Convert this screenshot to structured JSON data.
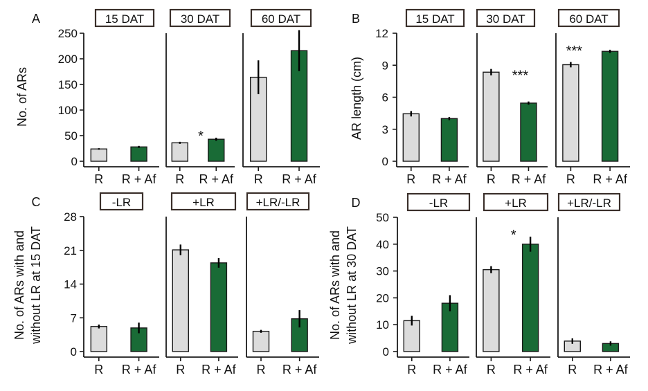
{
  "colors": {
    "control": "#dcdcdc",
    "treatment": "#196b36",
    "axis": "#1a1a1a",
    "box_border": "#3a2f2a"
  },
  "chart_data": [
    {
      "panel": "A",
      "type": "bar",
      "ylabel": "No. of ARs",
      "ylim": [
        0,
        250
      ],
      "yticks": [
        "0",
        "50",
        "100",
        "150",
        "200",
        "250"
      ],
      "groups": [
        {
          "label": "15 DAT",
          "categories": [
            "R",
            "R + Af"
          ],
          "values": [
            24,
            28
          ],
          "errors": [
            1.5,
            2
          ],
          "sig": ""
        },
        {
          "label": "30 DAT",
          "categories": [
            "R",
            "R + Af"
          ],
          "values": [
            36,
            43
          ],
          "errors": [
            2,
            3
          ],
          "sig": "*"
        },
        {
          "label": "60 DAT",
          "categories": [
            "R",
            "R + Af"
          ],
          "values": [
            164,
            216
          ],
          "errors": [
            33,
            40
          ],
          "sig": ""
        }
      ]
    },
    {
      "panel": "B",
      "type": "bar",
      "ylabel": "AR length (cm)",
      "ylim": [
        0,
        12
      ],
      "yticks": [
        "0",
        "3",
        "6",
        "9",
        "12"
      ],
      "groups": [
        {
          "label": "15 DAT",
          "categories": [
            "R",
            "R + Af"
          ],
          "values": [
            4.45,
            4.0
          ],
          "errors": [
            0.25,
            0.15
          ],
          "sig": ""
        },
        {
          "label": "30 DAT",
          "categories": [
            "R",
            "R + Af"
          ],
          "values": [
            8.35,
            5.45
          ],
          "errors": [
            0.3,
            0.15
          ],
          "sig": "***"
        },
        {
          "label": "60 DAT",
          "categories": [
            "R",
            "R + Af"
          ],
          "values": [
            9.05,
            10.3
          ],
          "errors": [
            0.25,
            0.15
          ],
          "sig": "***"
        }
      ]
    },
    {
      "panel": "C",
      "type": "bar",
      "ylabel": [
        "No. of ARs with and",
        "without LR at 15 DAT"
      ],
      "ylim": [
        0,
        28
      ],
      "yticks": [
        "0",
        "7",
        "14",
        "21",
        "28"
      ],
      "groups": [
        {
          "label": "-LR",
          "categories": [
            "R",
            "R + Af"
          ],
          "values": [
            5.2,
            4.9
          ],
          "errors": [
            0.4,
            1.1
          ],
          "sig": ""
        },
        {
          "label": "+LR",
          "categories": [
            "R",
            "R + Af"
          ],
          "values": [
            21.1,
            18.4
          ],
          "errors": [
            1.1,
            1.0
          ],
          "sig": ""
        },
        {
          "label": "+LR/-LR",
          "categories": [
            "R",
            "R + Af"
          ],
          "values": [
            4.2,
            6.8
          ],
          "errors": [
            0.3,
            1.8
          ],
          "sig": ""
        }
      ]
    },
    {
      "panel": "D",
      "type": "bar",
      "ylabel": [
        "No. of ARs with and",
        "without LR at 30 DAT"
      ],
      "ylim": [
        0,
        50
      ],
      "yticks": [
        "0",
        "10",
        "20",
        "30",
        "40",
        "50"
      ],
      "groups": [
        {
          "label": "-LR",
          "categories": [
            "R",
            "R + Af"
          ],
          "values": [
            11.5,
            18
          ],
          "errors": [
            1.8,
            3
          ],
          "sig": ""
        },
        {
          "label": "+LR",
          "categories": [
            "R",
            "R + Af"
          ],
          "values": [
            30.5,
            40
          ],
          "errors": [
            1.3,
            2.8
          ],
          "sig": "*"
        },
        {
          "label": "+LR/-LR",
          "categories": [
            "R",
            "R + Af"
          ],
          "values": [
            3.9,
            3
          ],
          "errors": [
            1,
            0.8
          ],
          "sig": ""
        }
      ]
    }
  ]
}
